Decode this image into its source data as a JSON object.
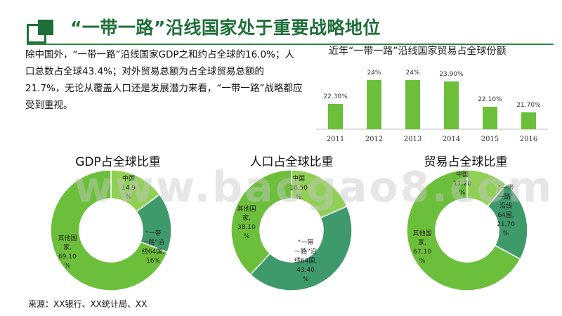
{
  "page": {
    "title": "“一带一路”沿线国家处于重要战略地位",
    "summary": "除中国外，“一带一路”沿线国家GDP之和约占全球的16.0%；人口总数占全球43.4%；对外贸易总额为占全球贸易总额的21.7%，无论从覆盖人口还是发展潜力来看，“一带一路”战略都应受到重视。",
    "source": "来源：XX银行、XX统计局、XX",
    "watermark": "www.baogao8.com"
  },
  "colors": {
    "brand": "#1f6f38",
    "bar": "#6cbf3a",
    "light": "#8fd055",
    "mid": "#6cbf3a",
    "dark": "#3f9a6b"
  },
  "chart_data": [
    {
      "type": "bar",
      "title": "近年“一带一路”沿线国家贸易占全球份额",
      "categories": [
        "2011",
        "2012",
        "2013",
        "2014",
        "2015",
        "2016"
      ],
      "values": [
        22.3,
        24.0,
        24.0,
        23.9,
        22.1,
        21.7
      ],
      "labels": [
        "22.30%",
        "24%",
        "24%",
        "23.90%",
        "22.10%",
        "21.70%"
      ],
      "ylim": [
        20.5,
        24.5
      ],
      "grid": false
    },
    {
      "type": "pie",
      "title": "GDP占全球比重",
      "slices": [
        {
          "label": [
            "中国",
            "14.9",
            "%"
          ],
          "value": 14.9
        },
        {
          "label": [
            "“一带",
            "一路”沿",
            "线64国,",
            "16%"
          ],
          "value": 16.0
        },
        {
          "label": [
            "其他国",
            "家,",
            "69.10",
            "%"
          ],
          "value": 69.1
        }
      ]
    },
    {
      "type": "pie",
      "title": "人口占全球比重",
      "slices": [
        {
          "label": [
            "中国",
            "18.50",
            "%"
          ],
          "value": 18.5
        },
        {
          "label": [
            "“一带",
            "一路”沿",
            "线64国,",
            "43.40",
            "%"
          ],
          "value": 43.4
        },
        {
          "label": [
            "其他国",
            "家,",
            "38.10",
            "%"
          ],
          "value": 38.1
        }
      ]
    },
    {
      "type": "pie",
      "title": "贸易占全球比重",
      "slices": [
        {
          "label": [
            "中国",
            "11.20",
            "%"
          ],
          "value": 11.2
        },
        {
          "label": [
            "“一带",
            "一路”",
            "沿线",
            "64国,",
            "21.70",
            "%"
          ],
          "value": 21.7
        },
        {
          "label": [
            "其他国",
            "家,",
            "67.10",
            "%"
          ],
          "value": 67.1
        }
      ]
    }
  ]
}
